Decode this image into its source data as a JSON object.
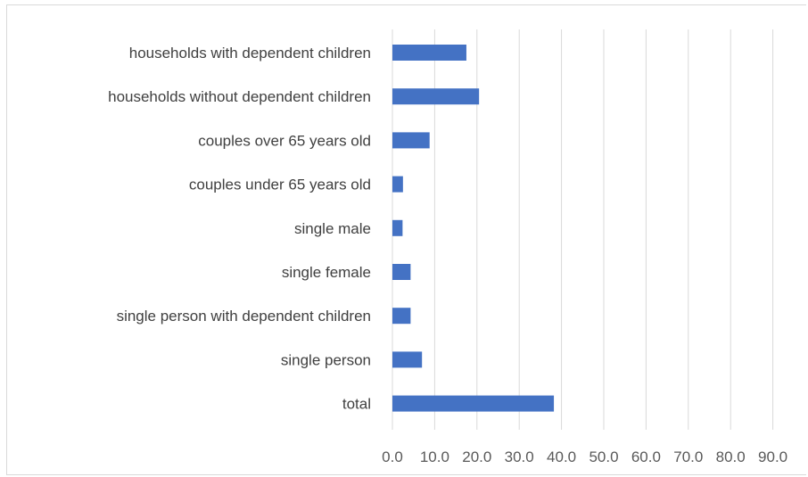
{
  "chart_data": {
    "type": "bar",
    "orientation": "horizontal",
    "categories": [
      "households with dependent children",
      "households without dependent children",
      "couples over 65 years old",
      "couples under 65 years old",
      "single male",
      "single female",
      "single person with dependent children",
      "single person",
      "total"
    ],
    "values": [
      17.5,
      20.5,
      8.8,
      2.5,
      2.4,
      4.3,
      4.3,
      7.0,
      38.2
    ],
    "x_ticks": [
      "0.0",
      "10.0",
      "20.0",
      "30.0",
      "40.0",
      "50.0",
      "60.0",
      "70.0",
      "80.0",
      "90.0"
    ],
    "xlim": [
      0,
      90
    ],
    "grid": "vertical",
    "bar_color": "#4472c4",
    "grid_color": "#d9d9d9",
    "title": "",
    "xlabel": "",
    "ylabel": ""
  }
}
